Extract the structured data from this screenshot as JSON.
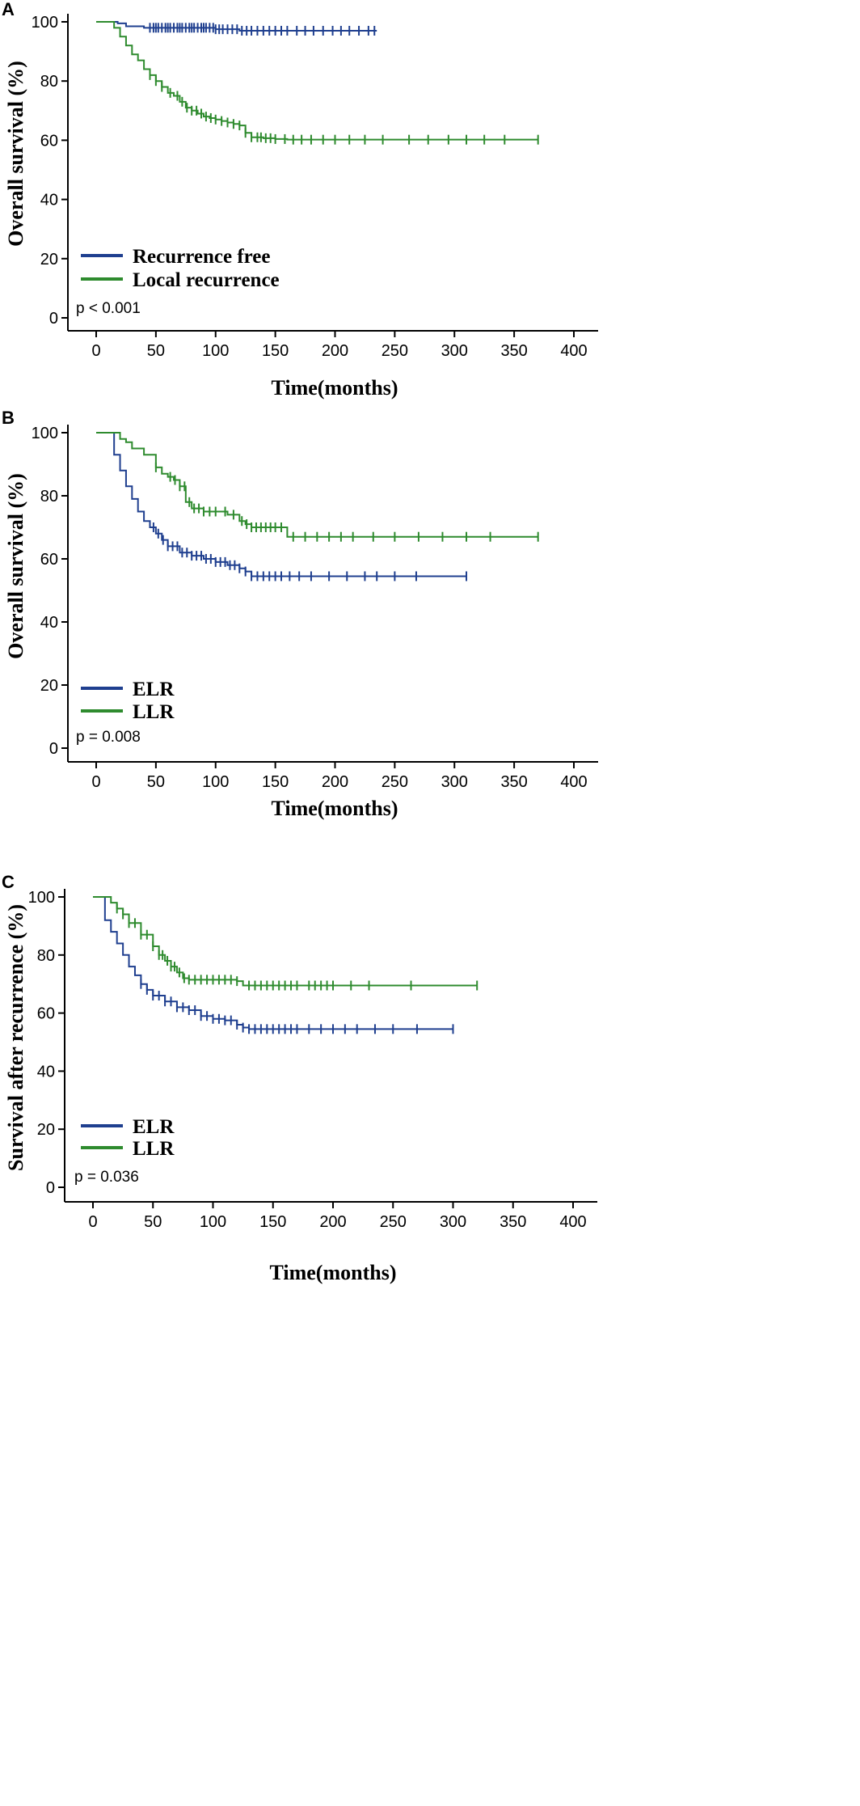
{
  "chart_data": [
    {
      "type": "line",
      "panel": "A",
      "title": "",
      "xlabel": "Time(months)",
      "ylabel": "Overall survival (%)",
      "xlim": [
        0,
        400
      ],
      "ylim": [
        0,
        100
      ],
      "xticks": [
        0,
        50,
        100,
        150,
        200,
        250,
        300,
        350,
        400
      ],
      "yticks": [
        0,
        20,
        40,
        60,
        80,
        100
      ],
      "grid": false,
      "legend_position": "bottom-left",
      "annotation": "p < 0.001",
      "series": [
        {
          "name": "Recurrence free",
          "color": "#1f3f8f",
          "x": [
            0,
            12,
            18,
            25,
            40,
            70,
            100,
            120,
            150,
            200,
            235
          ],
          "y": [
            100,
            100,
            99.5,
            98.5,
            98,
            98,
            97.5,
            97,
            97,
            97,
            97
          ],
          "censor_x": [
            45,
            48,
            50,
            52,
            55,
            58,
            60,
            62,
            65,
            68,
            70,
            72,
            75,
            78,
            80,
            82,
            85,
            88,
            90,
            92,
            95,
            98,
            100,
            103,
            106,
            110,
            114,
            118,
            122,
            126,
            130,
            135,
            140,
            145,
            150,
            155,
            160,
            168,
            175,
            182,
            190,
            198,
            205,
            212,
            220,
            228,
            233
          ]
        },
        {
          "name": "Local recurrence",
          "color": "#2e8b2e",
          "x": [
            0,
            10,
            15,
            20,
            25,
            30,
            35,
            40,
            45,
            50,
            55,
            60,
            65,
            70,
            75,
            80,
            85,
            90,
            95,
            100,
            105,
            110,
            115,
            120,
            125,
            130,
            140,
            150,
            160,
            200,
            300,
            370
          ],
          "y": [
            100,
            100,
            98,
            95,
            92,
            89,
            87,
            84,
            82,
            80,
            78,
            76,
            75,
            73,
            71,
            70,
            69,
            68,
            67.5,
            67,
            66.5,
            66,
            65.5,
            65,
            62.5,
            61,
            60.7,
            60.4,
            60.2,
            60.2,
            60.2,
            60.2
          ],
          "censor_x": [
            45,
            50,
            55,
            62,
            68,
            72,
            76,
            80,
            84,
            88,
            92,
            96,
            100,
            105,
            110,
            115,
            120,
            125,
            130,
            135,
            138,
            142,
            146,
            150,
            158,
            165,
            172,
            180,
            190,
            200,
            212,
            225,
            240,
            262,
            278,
            295,
            310,
            325,
            342,
            370
          ]
        }
      ]
    },
    {
      "type": "line",
      "panel": "B",
      "title": "",
      "xlabel": "Time(months)",
      "ylabel": "Overall survival (%)",
      "xlim": [
        0,
        400
      ],
      "ylim": [
        0,
        100
      ],
      "xticks": [
        0,
        50,
        100,
        150,
        200,
        250,
        300,
        350,
        400
      ],
      "yticks": [
        0,
        20,
        40,
        60,
        80,
        100
      ],
      "grid": false,
      "legend_position": "bottom-left",
      "annotation": "p = 0.008",
      "series": [
        {
          "name": "ELR",
          "color": "#1f3f8f",
          "x": [
            0,
            10,
            15,
            20,
            25,
            30,
            35,
            40,
            45,
            50,
            55,
            60,
            70,
            80,
            90,
            100,
            110,
            120,
            125,
            130,
            150,
            200,
            310
          ],
          "y": [
            100,
            100,
            93,
            88,
            83,
            79,
            75,
            72,
            70,
            68,
            66,
            64,
            62,
            61,
            60,
            59,
            58,
            57,
            56,
            54.5,
            54.5,
            54.5,
            54.5
          ],
          "censor_x": [
            48,
            52,
            56,
            60,
            64,
            68,
            72,
            76,
            80,
            84,
            88,
            92,
            96,
            100,
            104,
            108,
            112,
            116,
            120,
            125,
            130,
            135,
            140,
            145,
            150,
            155,
            162,
            170,
            180,
            195,
            210,
            225,
            235,
            250,
            268,
            310
          ]
        },
        {
          "name": "LLR",
          "color": "#2e8b2e",
          "x": [
            0,
            12,
            20,
            25,
            30,
            40,
            50,
            55,
            60,
            65,
            70,
            75,
            80,
            90,
            100,
            110,
            120,
            125,
            130,
            140,
            155,
            160,
            200,
            300,
            370
          ],
          "y": [
            100,
            100,
            98,
            97,
            95,
            93,
            89,
            87,
            86,
            85,
            83,
            78,
            76,
            75,
            75,
            74,
            72,
            71,
            70,
            70,
            70,
            67,
            67,
            67,
            67
          ],
          "censor_x": [
            50,
            62,
            66,
            70,
            74,
            78,
            82,
            86,
            90,
            95,
            100,
            108,
            115,
            122,
            126,
            130,
            134,
            138,
            142,
            146,
            150,
            155,
            165,
            175,
            185,
            195,
            205,
            215,
            232,
            250,
            270,
            290,
            310,
            330,
            370
          ]
        }
      ]
    },
    {
      "type": "line",
      "panel": "C",
      "title": "",
      "xlabel": "Time(months)",
      "ylabel": "Survival after recurrence (%)",
      "xlim": [
        0,
        400
      ],
      "ylim": [
        0,
        100
      ],
      "xticks": [
        0,
        50,
        100,
        150,
        200,
        250,
        300,
        350,
        400
      ],
      "yticks": [
        0,
        20,
        40,
        60,
        80,
        100
      ],
      "grid": false,
      "legend_position": "bottom-left",
      "annotation": "p = 0.036",
      "series": [
        {
          "name": "ELR",
          "color": "#1f3f8f",
          "x": [
            0,
            6,
            10,
            15,
            20,
            25,
            30,
            35,
            40,
            45,
            50,
            60,
            70,
            80,
            90,
            100,
            110,
            120,
            125,
            130,
            200,
            300
          ],
          "y": [
            100,
            100,
            92,
            88,
            84,
            80,
            76,
            73,
            70,
            68,
            66,
            64,
            62,
            61,
            59,
            58,
            57.5,
            56,
            55,
            54.5,
            54.5,
            54.5
          ],
          "censor_x": [
            40,
            45,
            50,
            55,
            60,
            65,
            70,
            75,
            80,
            85,
            90,
            95,
            100,
            105,
            110,
            115,
            120,
            125,
            130,
            135,
            140,
            145,
            150,
            155,
            160,
            165,
            170,
            180,
            190,
            200,
            210,
            220,
            235,
            250,
            270,
            300
          ]
        },
        {
          "name": "LLR",
          "color": "#2e8b2e",
          "x": [
            0,
            10,
            15,
            20,
            25,
            30,
            40,
            50,
            55,
            60,
            65,
            70,
            75,
            80,
            100,
            120,
            125,
            130,
            200,
            320
          ],
          "y": [
            100,
            100,
            98,
            96,
            94,
            91,
            87,
            83,
            80,
            78,
            76,
            74,
            72,
            71.5,
            71.5,
            71,
            69.5,
            69.5,
            69.5,
            69.5
          ],
          "censor_x": [
            20,
            25,
            30,
            35,
            40,
            45,
            50,
            55,
            58,
            62,
            65,
            68,
            72,
            76,
            80,
            85,
            90,
            95,
            100,
            105,
            110,
            115,
            120,
            130,
            135,
            140,
            145,
            150,
            155,
            160,
            165,
            170,
            180,
            185,
            190,
            195,
            200,
            215,
            230,
            265,
            320
          ]
        }
      ]
    }
  ]
}
